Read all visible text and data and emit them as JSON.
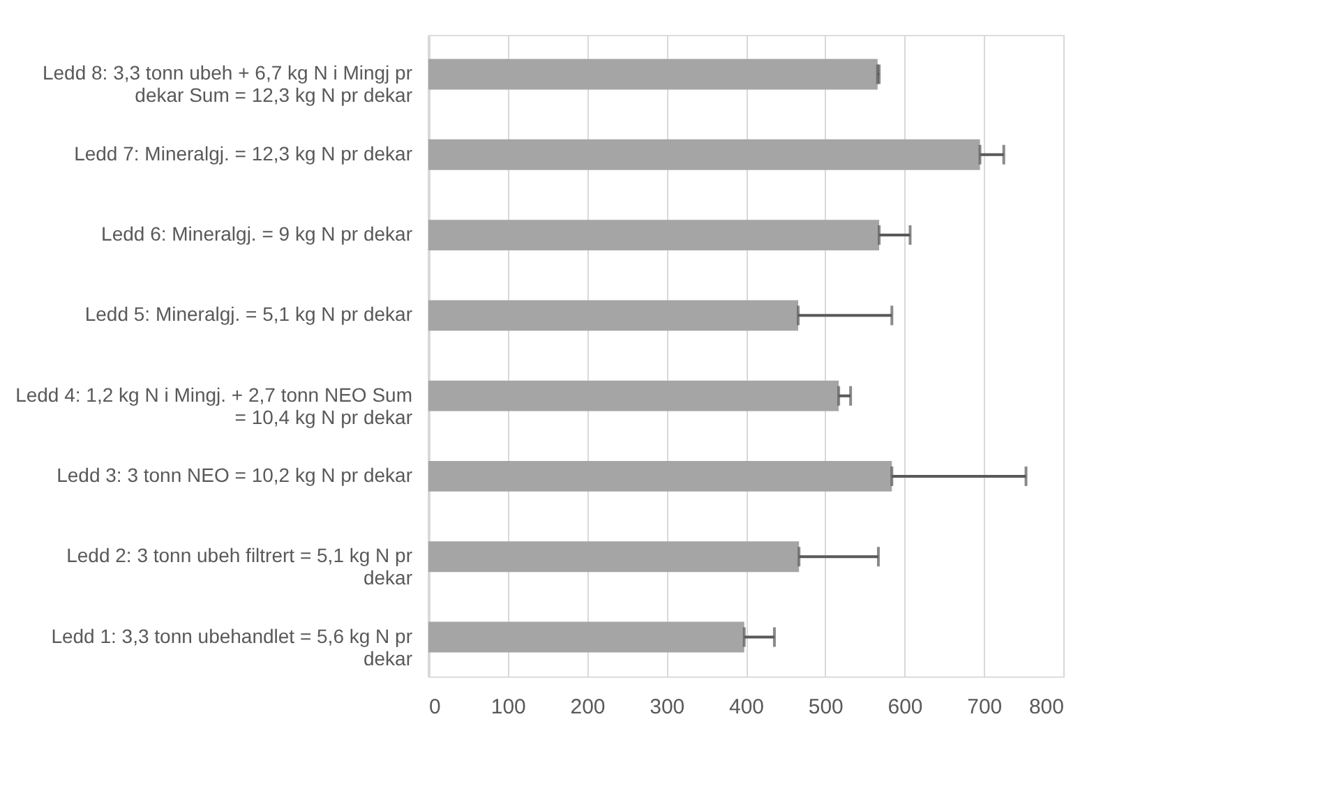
{
  "chart_data": {
    "type": "bar",
    "orientation": "horizontal",
    "categories": [
      "Ledd 8: 3,3 tonn ubeh + 6,7 kg N i Mingj pr dekar Sum = 12,3 kg N pr dekar",
      "Ledd 7: Mineralgj. =  12,3 kg N pr dekar",
      "Ledd 6: Mineralgj. = 9 kg N pr dekar",
      "Ledd 5: Mineralgj. = 5,1 kg N pr dekar",
      "Ledd 4: 1,2 kg N i Mingj. + 2,7 tonn NEO Sum = 10,4 kg N pr dekar",
      "Ledd 3: 3 tonn NEO = 10,2 kg N  pr  dekar",
      "Ledd 2: 3 tonn ubeh filtrert = 5,1 kg N pr dekar",
      "Ledd 1: 3,3 tonn ubehandlet = 5,6 kg N pr dekar"
    ],
    "values": [
      566,
      695,
      568,
      466,
      517,
      584,
      467,
      398
    ],
    "errors": [
      [
        566,
        568
      ],
      [
        695,
        725
      ],
      [
        568,
        607
      ],
      [
        466,
        584
      ],
      [
        517,
        532
      ],
      [
        584,
        753
      ],
      [
        467,
        567
      ],
      [
        398,
        436
      ]
    ],
    "color": "#a5a5a5",
    "xlim": [
      0,
      800
    ],
    "xticks": [
      0,
      100,
      200,
      300,
      400,
      500,
      600,
      700,
      800
    ],
    "grid": "x"
  }
}
